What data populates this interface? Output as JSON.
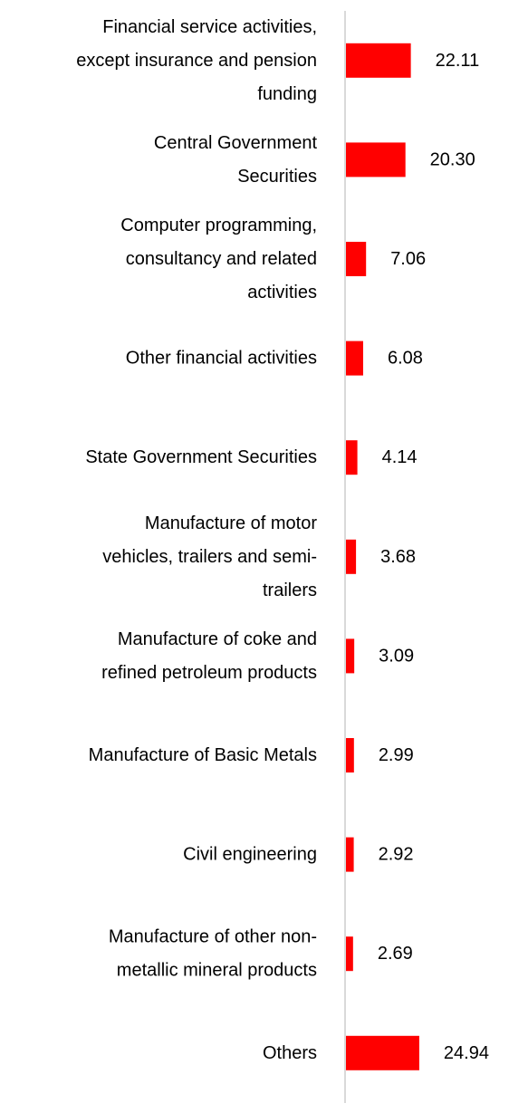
{
  "chart_data": {
    "type": "bar",
    "orientation": "horizontal",
    "title": "",
    "xlabel": "",
    "ylabel": "",
    "grid": false,
    "legend": "none",
    "bar_color": "#ff0000",
    "axis_color": "#d9d9d9",
    "xlim": [
      0,
      30
    ],
    "categories": [
      "Financial service activities, except insurance and pension funding",
      "Central Government Securities",
      "Computer programming, consultancy and related activities",
      "Other financial activities",
      "State Government Securities",
      "Manufacture of motor vehicles, trailers and semi-trailers",
      "Manufacture of coke and refined petroleum products",
      "Manufacture of Basic Metals",
      "Civil engineering",
      "Manufacture of other non-metallic mineral products",
      "Others"
    ],
    "category_lines": [
      [
        "Financial service activities,",
        "except insurance and pension",
        "funding"
      ],
      [
        "Central Government",
        "Securities"
      ],
      [
        "Computer programming,",
        "consultancy and related",
        "activities"
      ],
      [
        "Other financial activities"
      ],
      [
        "State Government Securities"
      ],
      [
        "Manufacture of motor",
        "vehicles, trailers and semi-",
        "trailers"
      ],
      [
        "Manufacture of coke and",
        "refined petroleum products"
      ],
      [
        "Manufacture of Basic Metals"
      ],
      [
        "Civil engineering"
      ],
      [
        "Manufacture of other non-",
        "metallic mineral products"
      ],
      [
        "Others"
      ]
    ],
    "values": [
      22.11,
      20.3,
      7.06,
      6.08,
      4.14,
      3.68,
      3.09,
      2.99,
      2.92,
      2.69,
      24.94
    ],
    "value_labels": [
      "22.11",
      "20.30",
      "7.06",
      "6.08",
      "4.14",
      "3.68",
      "3.09",
      "2.99",
      "2.92",
      "2.69",
      "24.94"
    ]
  }
}
